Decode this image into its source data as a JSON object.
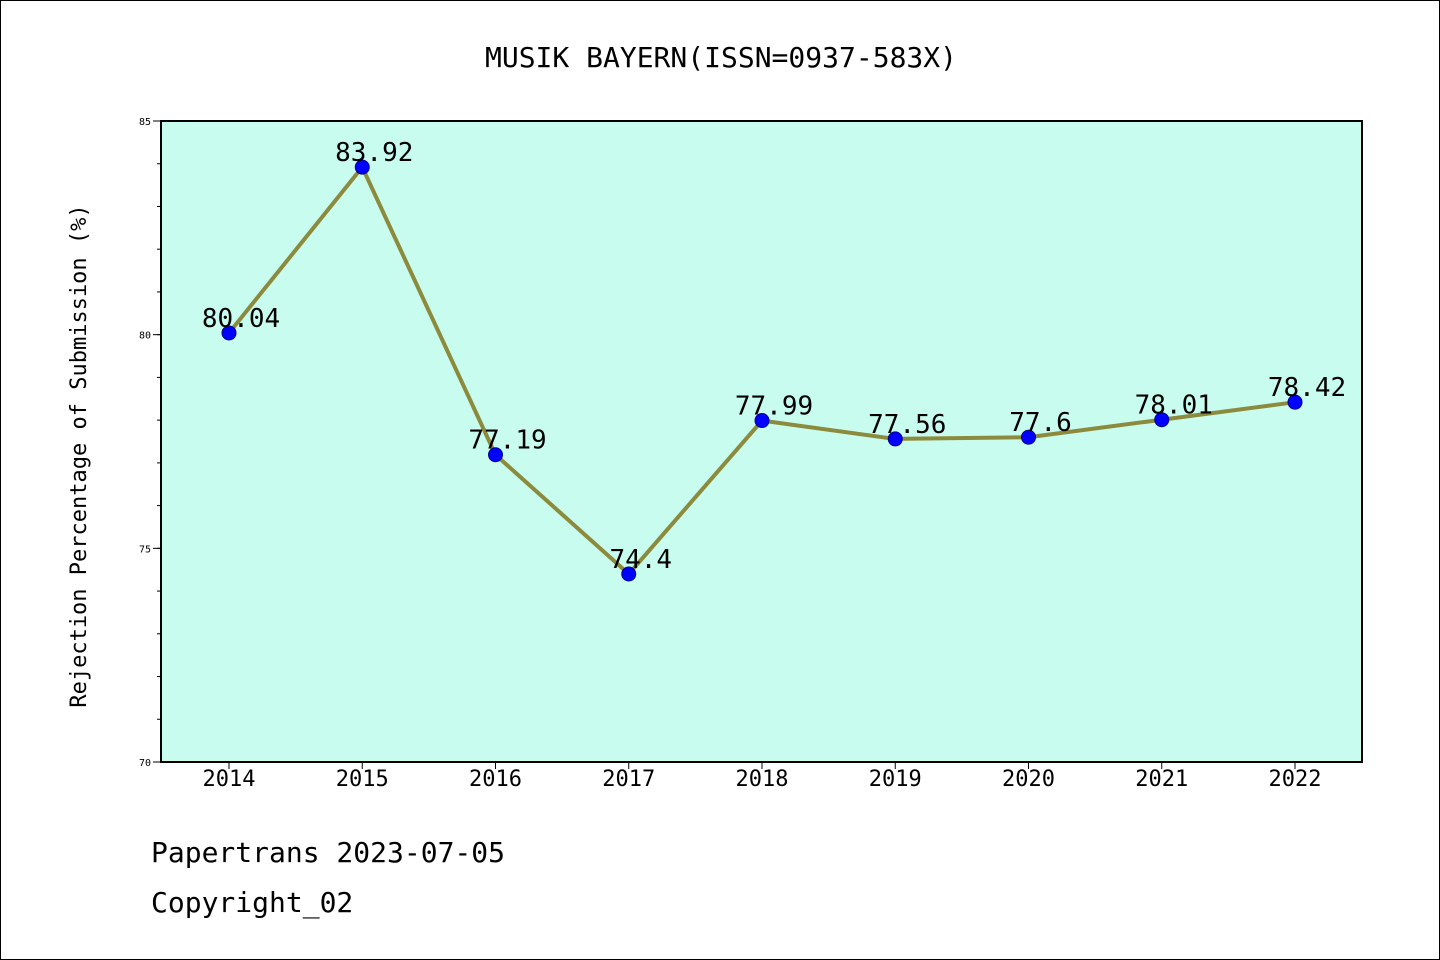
{
  "chart_data": {
    "type": "line",
    "title": "MUSIK BAYERN(ISSN=0937-583X)",
    "xlabel": "",
    "ylabel": "Rejection Percentage of Submission (%)",
    "categories": [
      "2014",
      "2015",
      "2016",
      "2017",
      "2018",
      "2019",
      "2020",
      "2021",
      "2022"
    ],
    "series": [
      {
        "values": [
          80.04,
          83.92,
          77.19,
          74.4,
          77.99,
          77.56,
          77.6,
          78.01,
          78.42
        ],
        "data_labels": [
          "80.04",
          "83.92",
          "77.19",
          "74.4",
          "77.99",
          "77.56",
          "77.6",
          "78.01",
          "78.42"
        ]
      }
    ],
    "ylim": [
      70,
      85
    ],
    "yticks": [
      70,
      75,
      80,
      85
    ],
    "yminor_step": 1,
    "grid": false,
    "legend": "none",
    "colors": {
      "plot_background": "#c8fcee",
      "line": "#8c8a3c",
      "marker": "#0000ff",
      "marker_edge": "#00008b",
      "axes": "#000000"
    }
  },
  "footer": {
    "source": "Papertrans 2023-07-05",
    "copyright": "Copyright_02"
  }
}
